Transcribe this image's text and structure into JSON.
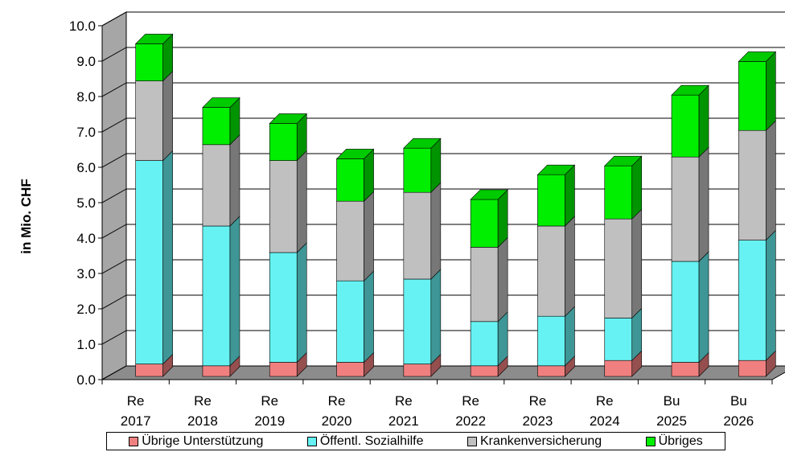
{
  "chart_data": {
    "type": "bar",
    "stacked": true,
    "three_d": true,
    "ylabel": "in Mio. CHF",
    "xlabel": "",
    "title": "",
    "ylim": [
      0,
      10
    ],
    "ytick_step": 1,
    "ytick_labels": [
      "0.0",
      "1.0",
      "2.0",
      "3.0",
      "4.0",
      "5.0",
      "6.0",
      "7.0",
      "8.0",
      "9.0",
      "10.0"
    ],
    "grid": true,
    "legend_position": "bottom",
    "categories": [
      {
        "line1": "Re",
        "line2": "2017"
      },
      {
        "line1": "Re",
        "line2": "2018"
      },
      {
        "line1": "Re",
        "line2": "2019"
      },
      {
        "line1": "Re",
        "line2": "2020"
      },
      {
        "line1": "Re",
        "line2": "2021"
      },
      {
        "line1": "Re",
        "line2": "2022"
      },
      {
        "line1": "Re",
        "line2": "2023"
      },
      {
        "line1": "Re",
        "line2": "2024"
      },
      {
        "line1": "Bu",
        "line2": "2025"
      },
      {
        "line1": "Bu",
        "line2": "2026"
      }
    ],
    "series": [
      {
        "name": "Übrige Unterstützung",
        "color": "#f08080",
        "values": [
          0.35,
          0.3,
          0.4,
          0.4,
          0.35,
          0.3,
          0.3,
          0.45,
          0.4,
          0.45
        ]
      },
      {
        "name": "Öffentl. Sozialhilfe",
        "color": "#66f2f2",
        "values": [
          5.75,
          3.95,
          3.1,
          2.3,
          2.4,
          1.25,
          1.4,
          1.2,
          2.85,
          3.4
        ]
      },
      {
        "name": "Krankenversicherung",
        "color": "#c0c0c0",
        "values": [
          2.25,
          2.3,
          2.6,
          2.25,
          2.45,
          2.1,
          2.55,
          2.8,
          2.95,
          3.1
        ]
      },
      {
        "name": "Übriges",
        "color": "#00ee00",
        "values": [
          1.05,
          1.05,
          1.05,
          1.2,
          1.25,
          1.35,
          1.45,
          1.5,
          1.75,
          1.95
        ]
      }
    ]
  }
}
